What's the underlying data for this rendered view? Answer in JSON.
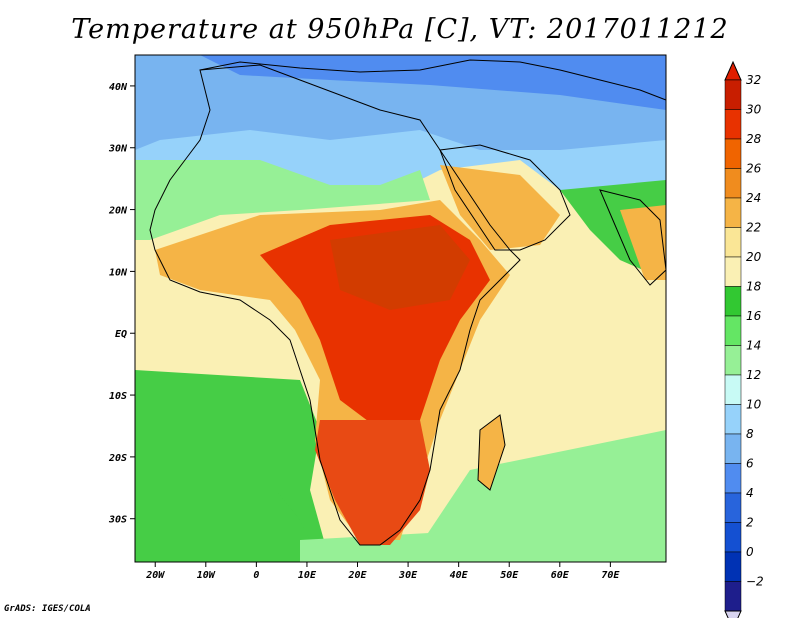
{
  "title": "Temperature at 950hPa [C], VT: 2017011212",
  "credit": "GrADS: IGES/COLA",
  "lat_labels": [
    {
      "text": "40N",
      "deg": 40
    },
    {
      "text": "30N",
      "deg": 30
    },
    {
      "text": "20N",
      "deg": 20
    },
    {
      "text": "10N",
      "deg": 10
    },
    {
      "text": "EQ",
      "deg": 0
    },
    {
      "text": "10S",
      "deg": -10
    },
    {
      "text": "20S",
      "deg": -20
    },
    {
      "text": "30S",
      "deg": -30
    }
  ],
  "lon_labels": [
    {
      "text": "20W",
      "deg": -20
    },
    {
      "text": "10W",
      "deg": -10
    },
    {
      "text": "0",
      "deg": 0
    },
    {
      "text": "10E",
      "deg": 10
    },
    {
      "text": "20E",
      "deg": 20
    },
    {
      "text": "30E",
      "deg": 30
    },
    {
      "text": "40E",
      "deg": 40
    },
    {
      "text": "50E",
      "deg": 50
    },
    {
      "text": "60E",
      "deg": 60
    },
    {
      "text": "70E",
      "deg": 70
    }
  ],
  "colorbar": {
    "labels": [
      "32",
      "30",
      "28",
      "26",
      "24",
      "22",
      "20",
      "18",
      "16",
      "14",
      "12",
      "10",
      "8",
      "6",
      "4",
      "2",
      "0",
      "−2"
    ],
    "colors": [
      "#c81e00",
      "#e83200",
      "#f06400",
      "#f08c1e",
      "#f5b446",
      "#fae696",
      "#faf0b4",
      "#32c832",
      "#64e664",
      "#96f096",
      "#c8faf5",
      "#96d2fa",
      "#78b4f0",
      "#508cf0",
      "#2864dc",
      "#1450d2",
      "#0032b4",
      "#1e1e8c"
    ],
    "top_arrow_color": "#e01e00",
    "bottom_arrow_color": "#d8d4f0"
  },
  "regions": [
    {
      "name": "ocean-south-atlantic",
      "color": "#46cd46"
    },
    {
      "name": "ocean-equatorial",
      "color": "#faf0b4"
    },
    {
      "name": "mediterranean",
      "color": "#78b4f0"
    },
    {
      "name": "sahara-north",
      "color": "#96d2fa"
    },
    {
      "name": "sahel",
      "color": "#f5b446"
    },
    {
      "name": "central-africa-hot",
      "color": "#e83200"
    },
    {
      "name": "east-africa-hot",
      "color": "#d23c00"
    },
    {
      "name": "southern-africa-hot",
      "color": "#e84a14"
    },
    {
      "name": "arabia",
      "color": "#f5b446"
    },
    {
      "name": "indian-ocean",
      "color": "#faf0b4"
    },
    {
      "name": "southern-ocean",
      "color": "#96f096"
    },
    {
      "name": "europe",
      "color": "#508cf0"
    }
  ]
}
